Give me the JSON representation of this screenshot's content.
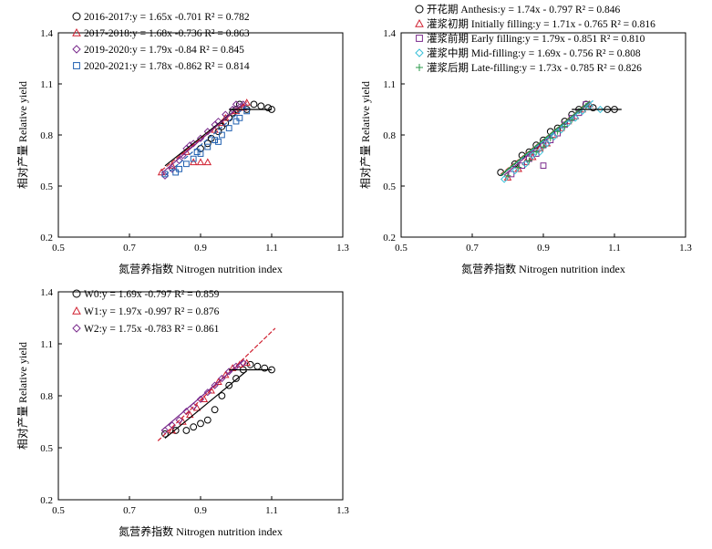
{
  "figure": {
    "colors": {
      "black": "#000000",
      "red": "#d02030",
      "purple": "#7a2a8c",
      "blue": "#1f5fb0",
      "cyan": "#38c0d8",
      "green": "#2a9a4a",
      "teal": "#1aa39b"
    }
  },
  "chart_data": [
    {
      "type": "scatter",
      "panel": "top-left",
      "xlabel": "氮营养指数 Nitrogen nutrition index",
      "ylabel": "相对产量 Relative yield",
      "xlim": [
        0.5,
        1.3
      ],
      "ylim": [
        0.2,
        1.4
      ],
      "x_ticks": [
        "0.5",
        "0.7",
        "0.9",
        "1.1",
        "1.3"
      ],
      "y_ticks": [
        "0.2",
        "0.5",
        "0.8",
        "1.1",
        "1.4"
      ],
      "legend_position": "top-left",
      "plateau": {
        "x": [
          0.98,
          1.1
        ],
        "y": 0.95
      },
      "series": [
        {
          "name": "2016-2017",
          "marker": "circle",
          "color": "#000000",
          "equation": "y = 1.65x -0.701  R² = 0.782",
          "fit": {
            "slope": 1.65,
            "intercept": -0.701,
            "x_range": [
              0.8,
              1.01
            ]
          },
          "points": [
            [
              0.9,
              0.72
            ],
            [
              0.93,
              0.78
            ],
            [
              0.95,
              0.82
            ],
            [
              0.97,
              0.87
            ],
            [
              0.98,
              0.9
            ],
            [
              0.99,
              0.93
            ],
            [
              1.0,
              0.95
            ],
            [
              1.01,
              0.98
            ],
            [
              1.03,
              0.95
            ],
            [
              1.05,
              0.98
            ],
            [
              1.07,
              0.97
            ],
            [
              1.09,
              0.96
            ],
            [
              1.1,
              0.95
            ],
            [
              0.92,
              0.75
            ],
            [
              0.96,
              0.85
            ]
          ]
        },
        {
          "name": "2017-2018",
          "marker": "triangle",
          "color": "#d02030",
          "equation": "y = 1.68x -0.736  R² = 0.863",
          "fit": {
            "slope": 1.68,
            "intercept": -0.736,
            "x_range": [
              0.79,
              1.03
            ]
          },
          "points": [
            [
              0.79,
              0.58
            ],
            [
              0.82,
              0.62
            ],
            [
              0.88,
              0.64
            ],
            [
              0.9,
              0.64
            ],
            [
              0.92,
              0.64
            ],
            [
              0.94,
              0.83
            ],
            [
              0.96,
              0.87
            ],
            [
              0.97,
              0.9
            ],
            [
              1.0,
              0.94
            ],
            [
              1.02,
              0.96
            ],
            [
              1.03,
              0.99
            ],
            [
              0.86,
              0.7
            ]
          ]
        },
        {
          "name": "2019-2020",
          "marker": "diamond",
          "color": "#7a2a8c",
          "equation": "y = 1.79x -0.84  R² = 0.845",
          "fit": {
            "slope": 1.79,
            "intercept": -0.84,
            "x_range": [
              0.79,
              1.02
            ]
          },
          "points": [
            [
              0.8,
              0.56
            ],
            [
              0.82,
              0.6
            ],
            [
              0.84,
              0.65
            ],
            [
              0.85,
              0.68
            ],
            [
              0.86,
              0.72
            ],
            [
              0.88,
              0.75
            ],
            [
              0.9,
              0.78
            ],
            [
              0.92,
              0.82
            ],
            [
              0.94,
              0.86
            ],
            [
              0.95,
              0.88
            ],
            [
              0.97,
              0.92
            ],
            [
              0.99,
              0.95
            ],
            [
              1.0,
              0.98
            ],
            [
              1.02,
              0.98
            ],
            [
              0.87,
              0.74
            ]
          ]
        },
        {
          "name": "2020-2021",
          "marker": "square",
          "color": "#1f5fb0",
          "equation": "y = 1.78x -0.862  R² = 0.814",
          "fit": {
            "slope": 1.78,
            "intercept": -0.862,
            "x_range": [
              0.8,
              1.03
            ]
          },
          "points": [
            [
              0.8,
              0.57
            ],
            [
              0.84,
              0.6
            ],
            [
              0.86,
              0.63
            ],
            [
              0.88,
              0.66
            ],
            [
              0.9,
              0.69
            ],
            [
              0.92,
              0.73
            ],
            [
              0.94,
              0.77
            ],
            [
              0.96,
              0.8
            ],
            [
              0.98,
              0.84
            ],
            [
              1.0,
              0.88
            ],
            [
              1.01,
              0.9
            ],
            [
              1.03,
              0.94
            ],
            [
              0.83,
              0.58
            ],
            [
              0.89,
              0.7
            ],
            [
              0.95,
              0.76
            ]
          ]
        }
      ]
    },
    {
      "type": "scatter",
      "panel": "top-right",
      "xlabel": "氮营养指数 Nitrogen nutrition index",
      "ylabel": "相对产量 Relative yield",
      "xlim": [
        0.5,
        1.3
      ],
      "ylim": [
        0.2,
        1.4
      ],
      "x_ticks": [
        "0.5",
        "0.7",
        "0.9",
        "1.1",
        "1.3"
      ],
      "y_ticks": [
        "0.2",
        "0.5",
        "0.8",
        "1.1",
        "1.4"
      ],
      "legend_position": "top",
      "plateau": {
        "x": [
          0.98,
          1.12
        ],
        "y": 0.95
      },
      "series": [
        {
          "name": "开花期 Anthesis",
          "marker": "circle",
          "color": "#000000",
          "equation": "y = 1.74x - 0.797  R² = 0.846",
          "fit": {
            "slope": 1.74,
            "intercept": -0.797,
            "x_range": [
              0.78,
              1.02
            ]
          },
          "points": [
            [
              0.78,
              0.58
            ],
            [
              0.82,
              0.63
            ],
            [
              0.84,
              0.68
            ],
            [
              0.86,
              0.7
            ],
            [
              0.88,
              0.74
            ],
            [
              0.9,
              0.77
            ],
            [
              0.92,
              0.82
            ],
            [
              0.94,
              0.84
            ],
            [
              0.96,
              0.88
            ],
            [
              0.98,
              0.92
            ],
            [
              1.0,
              0.95
            ],
            [
              1.02,
              0.98
            ],
            [
              1.04,
              0.96
            ],
            [
              1.08,
              0.95
            ],
            [
              1.1,
              0.95
            ]
          ]
        },
        {
          "name": "灌浆初期 Initially filling",
          "marker": "triangle",
          "color": "#d02030",
          "equation": "y = 1.71x - 0.765  R² = 0.816",
          "fit": {
            "slope": 1.71,
            "intercept": -0.765,
            "x_range": [
              0.78,
              1.03
            ]
          },
          "points": [
            [
              0.8,
              0.55
            ],
            [
              0.83,
              0.6
            ],
            [
              0.85,
              0.64
            ],
            [
              0.87,
              0.67
            ],
            [
              0.89,
              0.72
            ],
            [
              0.91,
              0.75
            ],
            [
              0.93,
              0.8
            ],
            [
              0.95,
              0.84
            ],
            [
              0.97,
              0.88
            ],
            [
              0.99,
              0.91
            ],
            [
              1.01,
              0.95
            ],
            [
              1.03,
              0.98
            ]
          ]
        },
        {
          "name": "灌浆前期 Early filling",
          "marker": "square",
          "color": "#7a2a8c",
          "equation": "y = 1.79x - 0.851  R² = 0.810",
          "fit": {
            "slope": 1.79,
            "intercept": -0.851,
            "x_range": [
              0.79,
              1.03
            ]
          },
          "points": [
            [
              0.81,
              0.57
            ],
            [
              0.84,
              0.62
            ],
            [
              0.86,
              0.66
            ],
            [
              0.88,
              0.69
            ],
            [
              0.9,
              0.74
            ],
            [
              0.92,
              0.77
            ],
            [
              0.94,
              0.81
            ],
            [
              0.96,
              0.86
            ],
            [
              0.98,
              0.9
            ],
            [
              1.0,
              0.93
            ],
            [
              1.02,
              0.98
            ],
            [
              0.9,
              0.62
            ]
          ]
        },
        {
          "name": "灌浆中期 Mid-filling",
          "marker": "diamond",
          "color": "#38c0d8",
          "equation": "y = 1.69x - 0.756  R² = 0.808",
          "fit": {
            "slope": 1.69,
            "intercept": -0.756,
            "x_range": [
              0.78,
              1.04
            ]
          },
          "points": [
            [
              0.79,
              0.54
            ],
            [
              0.82,
              0.59
            ],
            [
              0.85,
              0.63
            ],
            [
              0.87,
              0.68
            ],
            [
              0.89,
              0.7
            ],
            [
              0.91,
              0.75
            ],
            [
              0.93,
              0.79
            ],
            [
              0.95,
              0.83
            ],
            [
              0.97,
              0.87
            ],
            [
              0.99,
              0.9
            ],
            [
              1.01,
              0.94
            ],
            [
              1.03,
              0.97
            ],
            [
              1.06,
              0.95
            ]
          ]
        },
        {
          "name": "灌浆后期 Late-filling",
          "marker": "plus",
          "color": "#2a9a4a",
          "equation": "y = 1.73x - 0.785  R² = 0.826",
          "fit": {
            "slope": 1.73,
            "intercept": -0.785,
            "x_range": [
              0.78,
              1.03
            ]
          },
          "points": [
            [
              0.8,
              0.56
            ],
            [
              0.83,
              0.61
            ],
            [
              0.86,
              0.65
            ],
            [
              0.88,
              0.7
            ],
            [
              0.9,
              0.73
            ],
            [
              0.92,
              0.78
            ],
            [
              0.94,
              0.82
            ],
            [
              0.96,
              0.85
            ],
            [
              0.98,
              0.89
            ],
            [
              1.0,
              0.94
            ],
            [
              1.02,
              0.97
            ]
          ]
        }
      ]
    },
    {
      "type": "scatter",
      "panel": "bottom-left",
      "xlabel": "氮营养指数 Nitrogen nutrition index",
      "ylabel": "相对产量 Relative yield",
      "xlim": [
        0.5,
        1.3
      ],
      "ylim": [
        0.2,
        1.4
      ],
      "x_ticks": [
        "0.5",
        "0.7",
        "0.9",
        "1.1",
        "1.3"
      ],
      "y_ticks": [
        "0.2",
        "0.5",
        "0.8",
        "1.1",
        "1.4"
      ],
      "legend_position": "top-left",
      "plateau": {
        "x": [
          0.98,
          1.1
        ],
        "y": 0.95
      },
      "series": [
        {
          "name": "W0",
          "marker": "circle",
          "color": "#000000",
          "equation": "y = 1.69x -0.797  R² = 0.859",
          "fit": {
            "slope": 1.69,
            "intercept": -0.797,
            "x_range": [
              0.8,
              1.03
            ]
          },
          "points": [
            [
              0.8,
              0.58
            ],
            [
              0.83,
              0.6
            ],
            [
              0.86,
              0.6
            ],
            [
              0.88,
              0.62
            ],
            [
              0.9,
              0.64
            ],
            [
              0.92,
              0.66
            ],
            [
              0.94,
              0.72
            ],
            [
              0.96,
              0.8
            ],
            [
              0.98,
              0.86
            ],
            [
              1.0,
              0.9
            ],
            [
              1.02,
              0.95
            ],
            [
              1.04,
              0.98
            ],
            [
              1.06,
              0.97
            ],
            [
              1.08,
              0.96
            ],
            [
              1.1,
              0.95
            ]
          ]
        },
        {
          "name": "W1",
          "marker": "triangle",
          "color": "#d02030",
          "equation": "y = 1.97x -0.997  R² = 0.876",
          "fit": {
            "slope": 1.97,
            "intercept": -0.997,
            "x_range": [
              0.78,
              1.11
            ]
          },
          "points": [
            [
              0.82,
              0.6
            ],
            [
              0.85,
              0.65
            ],
            [
              0.87,
              0.69
            ],
            [
              0.89,
              0.73
            ],
            [
              0.91,
              0.78
            ],
            [
              0.93,
              0.83
            ],
            [
              0.95,
              0.88
            ],
            [
              0.97,
              0.92
            ],
            [
              0.99,
              0.96
            ],
            [
              1.01,
              0.98
            ],
            [
              1.03,
              0.99
            ]
          ]
        },
        {
          "name": "W2",
          "marker": "diamond",
          "color": "#7a2a8c",
          "equation": "y = 1.75x -0.783  R² = 0.861",
          "fit": {
            "slope": 1.75,
            "intercept": -0.783,
            "x_range": [
              0.79,
              1.02
            ]
          },
          "points": [
            [
              0.8,
              0.6
            ],
            [
              0.82,
              0.63
            ],
            [
              0.84,
              0.66
            ],
            [
              0.86,
              0.71
            ],
            [
              0.88,
              0.74
            ],
            [
              0.9,
              0.78
            ],
            [
              0.92,
              0.82
            ],
            [
              0.94,
              0.86
            ],
            [
              0.96,
              0.9
            ],
            [
              0.98,
              0.94
            ],
            [
              1.0,
              0.97
            ],
            [
              1.02,
              0.99
            ]
          ]
        }
      ]
    }
  ]
}
